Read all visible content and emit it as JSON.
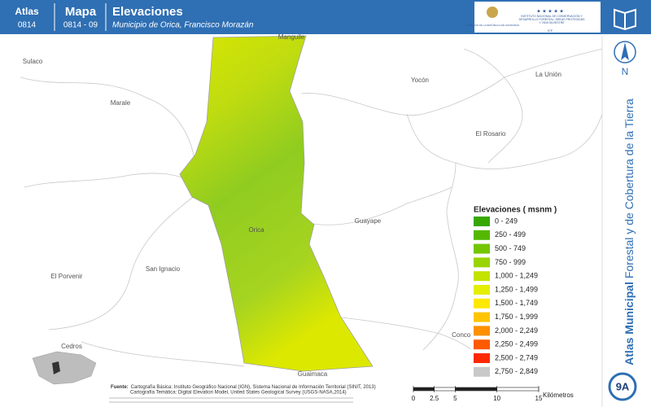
{
  "header": {
    "atlas_label": "Atlas",
    "atlas_code": "0814",
    "map_label": "Mapa",
    "map_code": "0814 - 09",
    "title": "Elevaciones",
    "subtitle": "Municipio de Orica, Francisco Morazán",
    "logo_left": "GOBIERNO DE LA REPÚBLICA DE HONDURAS",
    "logo_right": "INSTITUTO NACIONAL DE CONSERVACIÓN Y DESARROLLO FORESTAL, ÁREAS PROTEGIDAS Y VIDA SILVESTRE",
    "logo_acronym": "ICF"
  },
  "places": [
    "Manguile",
    "Sulaco",
    "Yocón",
    "La Unión",
    "Marale",
    "El Rosario",
    "Guayape",
    "Orica",
    "San Ignacio",
    "El Porvenir",
    "Cedros",
    "Concor",
    "Guaimaca"
  ],
  "legend": {
    "title": "Elevaciones ( msnm )",
    "items": [
      {
        "label": "0 - 249",
        "color": "#38a800"
      },
      {
        "label": "250 - 499",
        "color": "#55b800"
      },
      {
        "label": "500 - 749",
        "color": "#74c600"
      },
      {
        "label": "750 - 999",
        "color": "#98d400"
      },
      {
        "label": "1,000 - 1,249",
        "color": "#c3e300"
      },
      {
        "label": "1,250 - 1,499",
        "color": "#e4ee00"
      },
      {
        "label": "1,500 - 1,749",
        "color": "#ffe800"
      },
      {
        "label": "1,750 - 1,999",
        "color": "#ffc400"
      },
      {
        "label": "2,000 - 2,249",
        "color": "#ff9000"
      },
      {
        "label": "2,250 - 2,499",
        "color": "#ff5a00"
      },
      {
        "label": "2,500 - 2,749",
        "color": "#ff2800"
      },
      {
        "label": "2,750 - 2,849",
        "color": "#c8c8c8"
      }
    ]
  },
  "sidebar": {
    "north": "N",
    "series_bold": "Atlas Municipal",
    "series_rest": "Forestal y de Cobertura de la Tierra",
    "badge": "9A"
  },
  "source": {
    "label": "Fuente:",
    "line1": "Cartografía Básica: Instituto Geográfico Nacional (IGN), Sistema Nacional de Información Territorial (SINIT, 2013)",
    "line2": "Cartografía Temática: Digital Elevation Model, United States Geological Survey (USGS-NASA,2014)"
  },
  "scale": {
    "ticks": [
      0,
      2.5,
      5,
      10,
      15
    ],
    "unit": "Kilómetros"
  }
}
